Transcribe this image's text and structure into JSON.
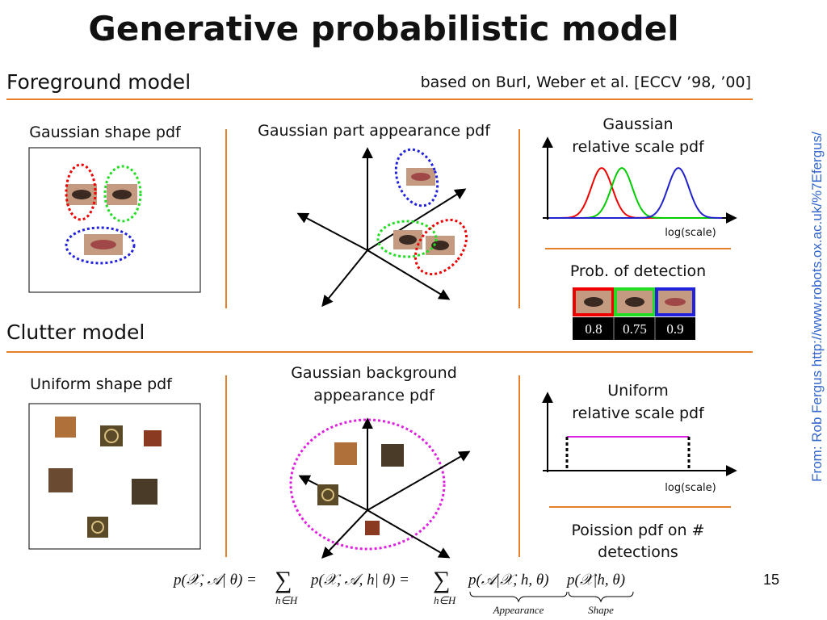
{
  "title": "Generative probabilistic model",
  "foreground": {
    "heading": "Foreground model",
    "citation": "based on Burl, Weber et al. [ECCV ’98, ’00]",
    "shape_label": "Gaussian shape pdf",
    "appearance_label": "Gaussian part appearance pdf",
    "scale_label": [
      "Gaussian",
      "relative scale pdf"
    ],
    "scale_axis": "log(scale)",
    "detection_label": "Prob. of detection",
    "detection_probs": [
      "0.8",
      "0.75",
      "0.9"
    ]
  },
  "clutter": {
    "heading": "Clutter model",
    "shape_label": "Uniform shape pdf",
    "appearance_label": [
      "Gaussian background",
      "appearance pdf"
    ],
    "scale_label": [
      "Uniform",
      "relative scale pdf"
    ],
    "scale_axis": "log(scale)",
    "count_label": [
      "Poission pdf on #",
      "detections"
    ]
  },
  "formula": {
    "lhs": "p(𝒳, 𝒜| θ) =",
    "sum_symbol": [
      "∑",
      "∑"
    ],
    "sum_index": [
      "h∈H",
      "h∈H"
    ],
    "middle": "p(𝒳, 𝒜, h| θ) =",
    "appearance_term": "p(𝒜|𝒳, h, θ)",
    "shape_term": "p(𝒳|h, θ)",
    "appearance_brace": "Appearance",
    "shape_brace": "Shape"
  },
  "page_number": "15",
  "source": "From: Rob Fergus http://www.robots.ox.ac.uk/%7Efergus/"
}
